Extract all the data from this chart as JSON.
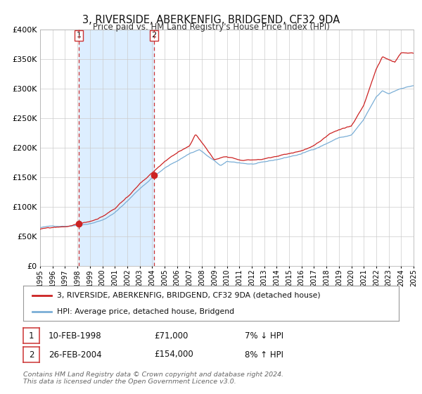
{
  "title": "3, RIVERSIDE, ABERKENFIG, BRIDGEND, CF32 9DA",
  "subtitle": "Price paid vs. HM Land Registry's House Price Index (HPI)",
  "ylim": [
    0,
    400000
  ],
  "yticks": [
    0,
    50000,
    100000,
    150000,
    200000,
    250000,
    300000,
    350000,
    400000
  ],
  "xlim_start": 1995.0,
  "xlim_end": 2025.0,
  "sale1_year": 1998.111,
  "sale1_price": 71000,
  "sale2_year": 2004.153,
  "sale2_price": 154000,
  "hpi_line_color": "#7aaed6",
  "price_line_color": "#cc2222",
  "sale_dot_color": "#cc2222",
  "vline_color": "#cc3333",
  "shade_color": "#ddeeff",
  "legend_line1": "3, RIVERSIDE, ABERKENFIG, BRIDGEND, CF32 9DA (detached house)",
  "legend_line2": "HPI: Average price, detached house, Bridgend",
  "sale1_date_str": "10-FEB-1998",
  "sale1_price_str": "£71,000",
  "sale1_hpi_str": "7% ↓ HPI",
  "sale2_date_str": "26-FEB-2004",
  "sale2_price_str": "£154,000",
  "sale2_hpi_str": "8% ↑ HPI",
  "footer": "Contains HM Land Registry data © Crown copyright and database right 2024.\nThis data is licensed under the Open Government Licence v3.0.",
  "background_color": "#ffffff",
  "grid_color": "#cccccc",
  "box_edge_color": "#cc3333"
}
